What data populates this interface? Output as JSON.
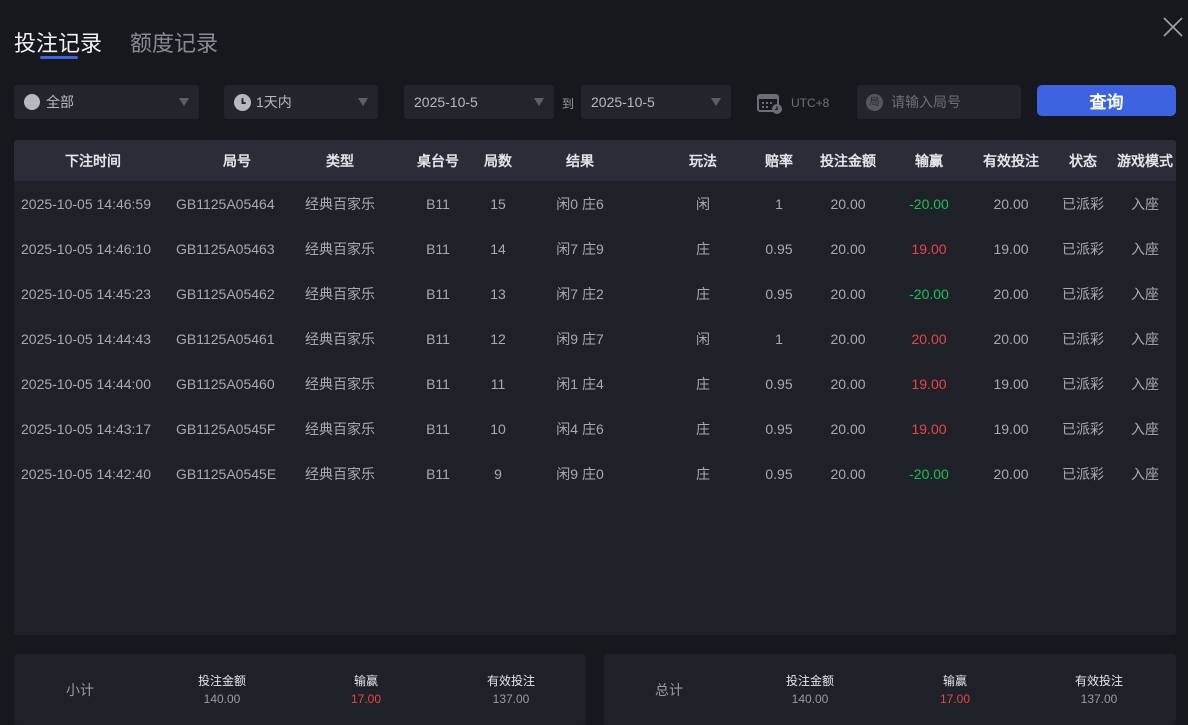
{
  "tabs": [
    {
      "label": "投注记录",
      "active": true
    },
    {
      "label": "额度记录",
      "active": false
    }
  ],
  "filters": {
    "game_type": "全部",
    "time_range": "1天内",
    "date_from": "2025-10-5",
    "to_label": "到",
    "date_to": "2025-10-5",
    "timezone": "UTC+8",
    "round_placeholder": "请输入局号",
    "round_icon_text": "局",
    "query_label": "查询"
  },
  "colors": {
    "accent": "#3d63e0",
    "win": "#e84545",
    "loss": "#18c15b"
  },
  "table": {
    "headers": [
      "下注时间",
      "局号",
      "类型",
      "桌台号",
      "局数",
      "结果",
      "玩法",
      "赔率",
      "投注金额",
      "输赢",
      "有效投注",
      "状态",
      "游戏模式"
    ],
    "rows": [
      [
        "2025-10-05 14:46:59",
        "GB1125A05464",
        "经典百家乐",
        "B11",
        "15",
        "闲0 庄6",
        "闲",
        "1",
        "20.00",
        "-20.00",
        "20.00",
        "已派彩",
        "入座"
      ],
      [
        "2025-10-05 14:46:10",
        "GB1125A05463",
        "经典百家乐",
        "B11",
        "14",
        "闲7 庄9",
        "庄",
        "0.95",
        "20.00",
        "19.00",
        "19.00",
        "已派彩",
        "入座"
      ],
      [
        "2025-10-05 14:45:23",
        "GB1125A05462",
        "经典百家乐",
        "B11",
        "13",
        "闲7 庄2",
        "庄",
        "0.95",
        "20.00",
        "-20.00",
        "20.00",
        "已派彩",
        "入座"
      ],
      [
        "2025-10-05 14:44:43",
        "GB1125A05461",
        "经典百家乐",
        "B11",
        "12",
        "闲9 庄7",
        "闲",
        "1",
        "20.00",
        "20.00",
        "20.00",
        "已派彩",
        "入座"
      ],
      [
        "2025-10-05 14:44:00",
        "GB1125A05460",
        "经典百家乐",
        "B11",
        "11",
        "闲1 庄4",
        "庄",
        "0.95",
        "20.00",
        "19.00",
        "19.00",
        "已派彩",
        "入座"
      ],
      [
        "2025-10-05 14:43:17",
        "GB1125A0545F",
        "经典百家乐",
        "B11",
        "10",
        "闲4 庄6",
        "庄",
        "0.95",
        "20.00",
        "19.00",
        "19.00",
        "已派彩",
        "入座"
      ],
      [
        "2025-10-05 14:42:40",
        "GB1125A0545E",
        "经典百家乐",
        "B11",
        "9",
        "闲9 庄0",
        "庄",
        "0.95",
        "20.00",
        "-20.00",
        "20.00",
        "已派彩",
        "入座"
      ]
    ]
  },
  "summary": [
    {
      "label": "小计",
      "bet_label": "投注金额",
      "bet": "140.00",
      "win_label": "输赢",
      "win": "17.00",
      "valid_label": "有效投注",
      "valid": "137.00"
    },
    {
      "label": "总计",
      "bet_label": "投注金额",
      "bet": "140.00",
      "win_label": "输赢",
      "win": "17.00",
      "valid_label": "有效投注",
      "valid": "137.00"
    }
  ]
}
